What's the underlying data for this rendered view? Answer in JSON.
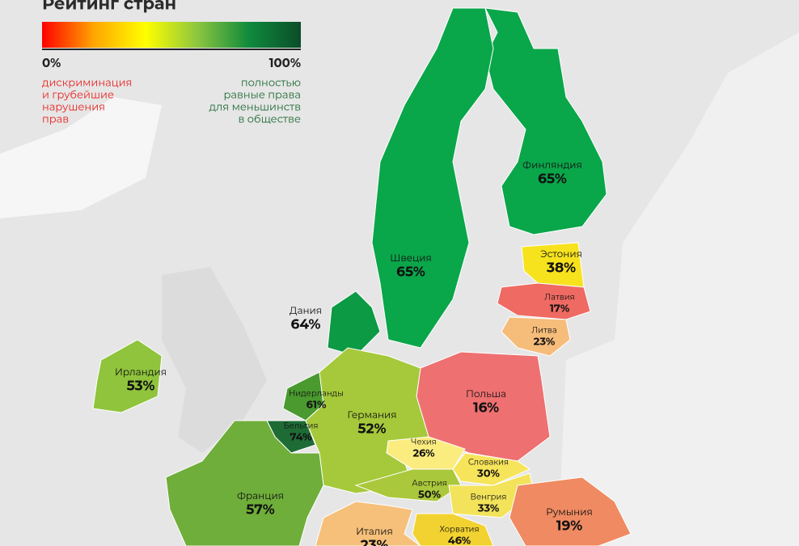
{
  "legend": {
    "title": "Рейтинг стран",
    "min_label": "0%",
    "max_label": "100%",
    "gradient": [
      "#ff0000",
      "#ffa500",
      "#ffff00",
      "#8cc63f",
      "#0f8a3c",
      "#0b4d2a"
    ],
    "min_text": [
      "дискриминация",
      "и грубейшие",
      "нарушения",
      "прав"
    ],
    "max_text": [
      "полностью",
      "равные права",
      "для меньшинств",
      "в обществе"
    ],
    "min_color": "#e8231f",
    "max_color": "#1f6b36"
  },
  "countries": [
    {
      "name": "Финляндия",
      "rating": "65%",
      "color": "#0aa64a"
    },
    {
      "name": "Швеция",
      "rating": "65%",
      "color": "#0aa64a"
    },
    {
      "name": "Дания",
      "rating": "64%",
      "color": "#0c9a45"
    },
    {
      "name": "Эстония",
      "rating": "38%",
      "color": "#f7e21e"
    },
    {
      "name": "Латвия",
      "rating": "17%",
      "color": "#ee6a62"
    },
    {
      "name": "Литва",
      "rating": "23%",
      "color": "#f6bc7a"
    },
    {
      "name": "Польша",
      "rating": "16%",
      "color": "#ee7070"
    },
    {
      "name": "Ирландия",
      "rating": "53%",
      "color": "#8fc43c"
    },
    {
      "name": "Нидерланды",
      "rating": "61%",
      "color": "#4a9a2f"
    },
    {
      "name": "Бельгия",
      "rating": "74%",
      "color": "#1e6b35"
    },
    {
      "name": "Германия",
      "rating": "52%",
      "color": "#a5c93a"
    },
    {
      "name": "Чехия",
      "rating": "26%",
      "color": "#fbec80"
    },
    {
      "name": "Словакия",
      "rating": "30%",
      "color": "#f6e45a"
    },
    {
      "name": "Австрия",
      "rating": "50%",
      "color": "#aac83b"
    },
    {
      "name": "Венгрия",
      "rating": "33%",
      "color": "#f2e35a"
    },
    {
      "name": "Румыния",
      "rating": "19%",
      "color": "#ef8a62"
    },
    {
      "name": "Франция",
      "rating": "57%",
      "color": "#6fae3a"
    },
    {
      "name": "Италия",
      "rating": "23%",
      "color": "#f6c07a"
    },
    {
      "name": "Хорватия",
      "rating": "46%",
      "color": "#f2d230"
    }
  ]
}
